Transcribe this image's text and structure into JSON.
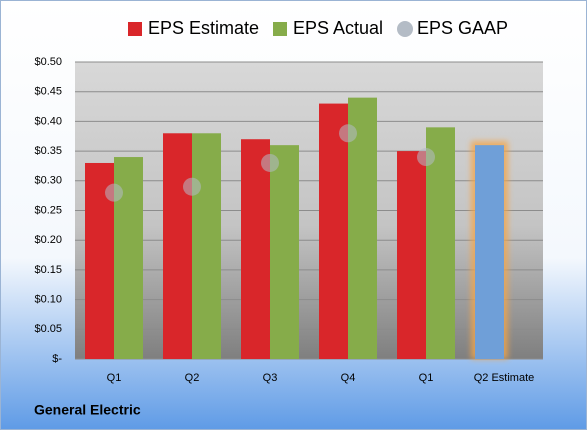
{
  "chart_data": {
    "type": "bar",
    "title": "General Electric",
    "categories": [
      "Q1",
      "Q2",
      "Q3",
      "Q4",
      "Q1",
      "Q2 Estimate"
    ],
    "series": [
      {
        "name": "EPS Estimate",
        "color": "#d9262a",
        "values": [
          0.33,
          0.38,
          0.37,
          0.43,
          0.35,
          0.36
        ],
        "colors": [
          "#d9262a",
          "#d9262a",
          "#d9262a",
          "#d9262a",
          "#d9262a",
          "#6f9fd8"
        ]
      },
      {
        "name": "EPS Actual",
        "color": "#86ac4a",
        "values": [
          0.34,
          0.38,
          0.36,
          0.44,
          0.39,
          null
        ]
      },
      {
        "name": "EPS GAAP",
        "color": "#b4bcc6",
        "type": "scatter",
        "values": [
          0.28,
          0.29,
          0.33,
          0.38,
          0.34,
          null
        ]
      }
    ],
    "ylim": [
      0,
      0.5
    ],
    "yticks": [
      {
        "value": 0,
        "label": "$-"
      },
      {
        "value": 0.05,
        "label": "$0.05"
      },
      {
        "value": 0.1,
        "label": "$0.10"
      },
      {
        "value": 0.15,
        "label": "$0.15"
      },
      {
        "value": 0.2,
        "label": "$0.20"
      },
      {
        "value": 0.25,
        "label": "$0.25"
      },
      {
        "value": 0.3,
        "label": "$0.30"
      },
      {
        "value": 0.35,
        "label": "$0.35"
      },
      {
        "value": 0.4,
        "label": "$0.40"
      },
      {
        "value": 0.45,
        "label": "$0.45"
      },
      {
        "value": 0.5,
        "label": "$0.50"
      }
    ],
    "grid": true
  }
}
